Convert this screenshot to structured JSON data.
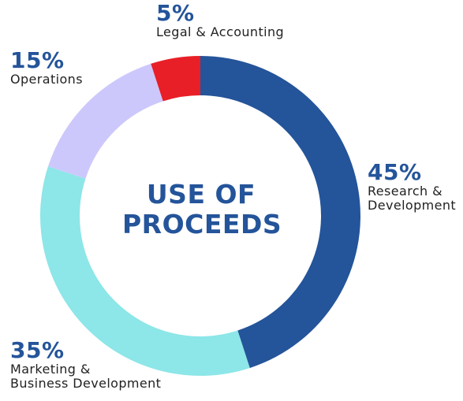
{
  "chart_data": {
    "type": "pie",
    "title": "USE OF PROCEEDS",
    "title_lines": [
      "USE OF",
      "PROCEEDS"
    ],
    "categories": [
      "Research & Development",
      "Marketing & Business Development",
      "Operations",
      "Legal & Accounting"
    ],
    "values": [
      45,
      35,
      15,
      5
    ],
    "percent_labels": [
      "45%",
      "35%",
      "15%",
      "5%"
    ],
    "label_lines": [
      [
        "Research &",
        "Development"
      ],
      [
        "Marketing &",
        "Business Development"
      ],
      [
        "Operations"
      ],
      [
        "Legal & Accounting"
      ]
    ],
    "colors": [
      "#24549a",
      "#8de6e8",
      "#cdc8fb",
      "#e81f27"
    ],
    "donut": true,
    "start_angle_deg": 0,
    "direction": "clockwise",
    "legend": "none"
  }
}
